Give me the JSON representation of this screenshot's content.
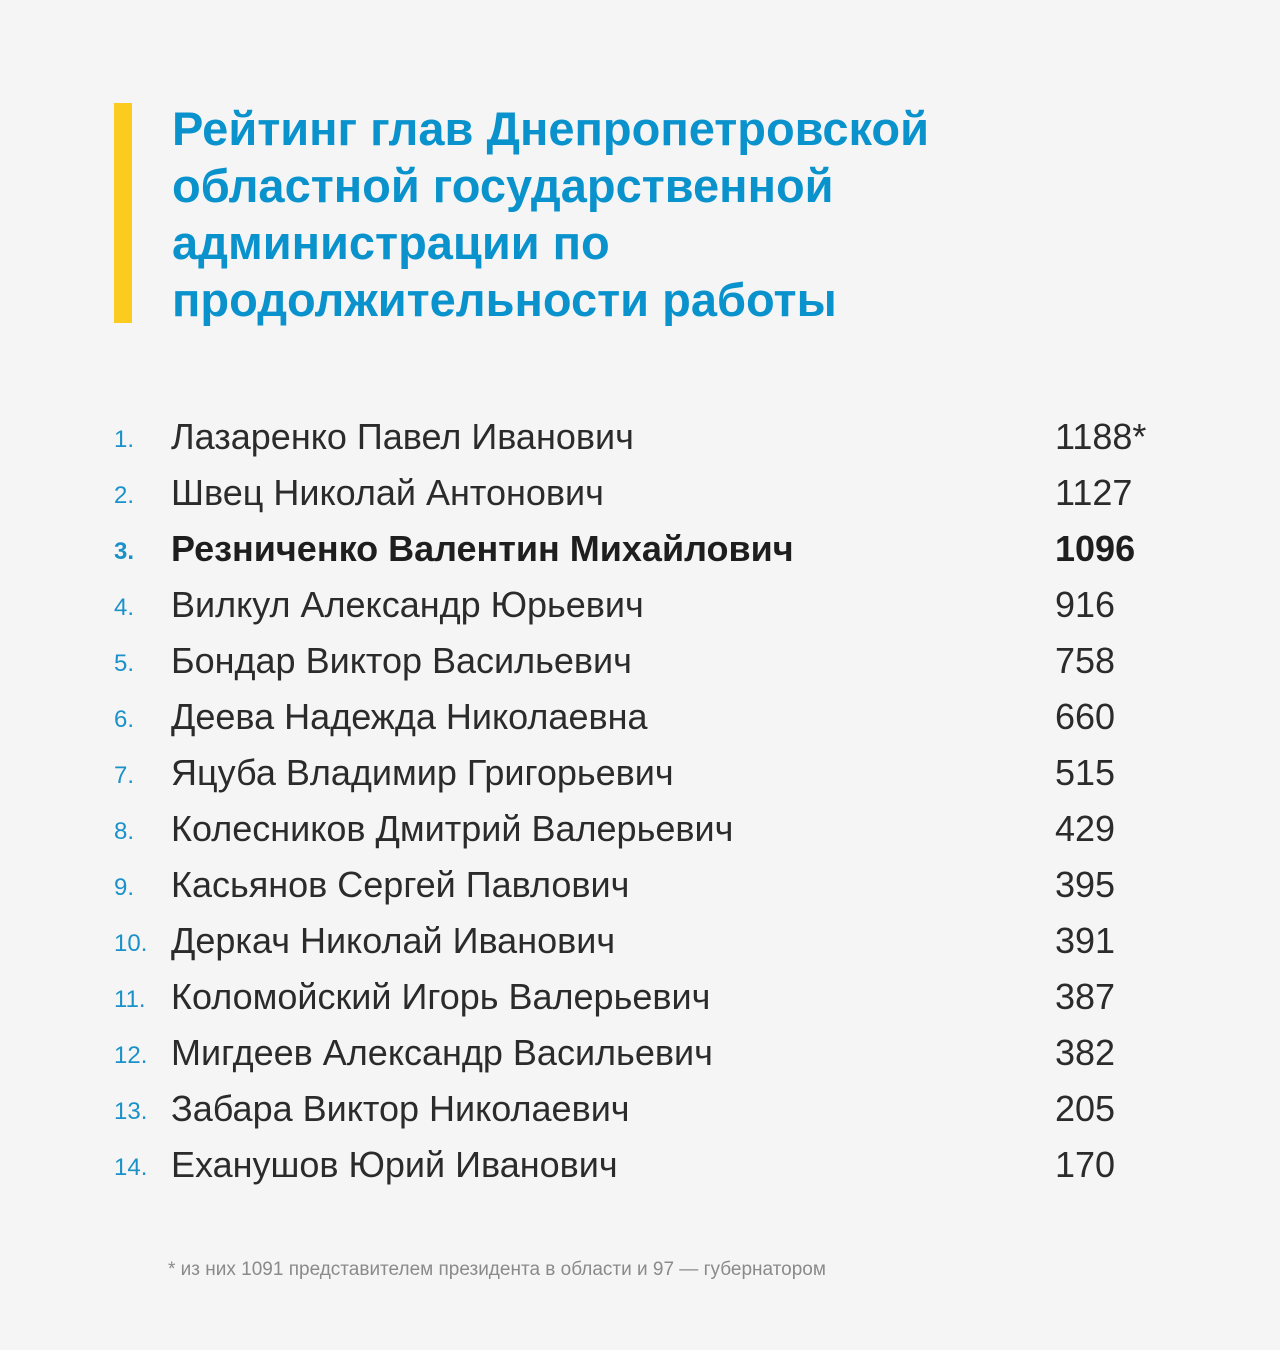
{
  "colors": {
    "background": "#f6f5f5",
    "accent_bar": "#fbcb1f",
    "title": "#0a92cd",
    "rank_numbers": "#1a92c9",
    "text": "#2b2b2b",
    "footnote": "#8a8a8a"
  },
  "title_lines": [
    "Рейтинг глав Днепропетровской",
    "областной государственной",
    "администрации по",
    "продолжительности работы"
  ],
  "rows": [
    {
      "rank": "1.",
      "name": "Лазаренко Павел Иванович",
      "value": "1188*"
    },
    {
      "rank": "2.",
      "name": "Швец Николай Антонович",
      "value": "1127"
    },
    {
      "rank": "3.",
      "name": "Резниченко Валентин Михайлович",
      "value": "1096",
      "highlight": true
    },
    {
      "rank": "4.",
      "name": "Вилкул Александр Юрьевич",
      "value": "916"
    },
    {
      "rank": "5.",
      "name": "Бондар Виктор Васильевич",
      "value": "758"
    },
    {
      "rank": "6.",
      "name": "Деева Надежда Николаевна",
      "value": "660"
    },
    {
      "rank": "7.",
      "name": "Яцуба Владимир Григорьевич",
      "value": "515"
    },
    {
      "rank": "8.",
      "name": "Колесников Дмитрий Валерьевич",
      "value": "429"
    },
    {
      "rank": "9.",
      "name": "Касьянов Сергей Павлович",
      "value": "395"
    },
    {
      "rank": "10.",
      "name": "Деркач Николай Иванович",
      "value": "391"
    },
    {
      "rank": "11.",
      "name": "Коломойский Игорь Валерьевич",
      "value": "387"
    },
    {
      "rank": "12.",
      "name": "Мигдеев Александр Васильевич",
      "value": "382"
    },
    {
      "rank": "13.",
      "name": "Забара Виктор Николаевич",
      "value": "205"
    },
    {
      "rank": "14.",
      "name": "Еханушов Юрий Иванович",
      "value": "170"
    }
  ],
  "footnote": "* из них 1091 представителем президента в области и 97 —  губернатором"
}
